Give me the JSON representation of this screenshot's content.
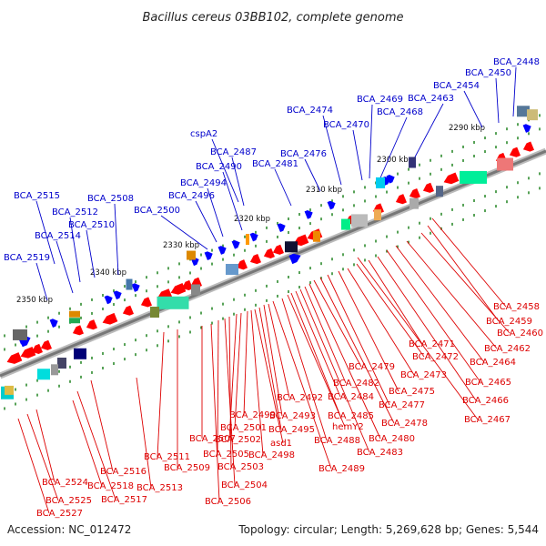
{
  "title": "Bacillus cereus 03BB102, complete genome",
  "footer": {
    "accession": "Accession: NC_012472",
    "topology": "Topology: circular; Length: 5,269,628 bp; Genes: 5,544"
  },
  "colors": {
    "forward": "#0000ff",
    "reverse": "#ff0000",
    "backbone": "#888888",
    "tick": "#2e8b2e"
  },
  "kbp_labels": [
    "2290 kbp",
    "2300 kbp",
    "2310 kbp",
    "2320 kbp",
    "2330 kbp",
    "2340 kbp",
    "2350 kbp"
  ],
  "top_labels": [
    "BCA_2448",
    "BCA_2450",
    "BCA_2454",
    "BCA_2463",
    "BCA_2468",
    "BCA_2469",
    "BCA_2470",
    "BCA_2474",
    "BCA_2476",
    "BCA_2481",
    "cspA2",
    "BCA_2487",
    "BCA_2490",
    "BCA_2494",
    "BCA_2496",
    "BCA_2500",
    "BCA_2508",
    "BCA_2515",
    "BCA_2512",
    "BCA_2510",
    "BCA_2514",
    "BCA_2519"
  ],
  "bottom_labels": [
    "BCA_2458",
    "BCA_2459",
    "BCA_2460",
    "BCA_2462",
    "BCA_2464",
    "BCA_2465",
    "BCA_2466",
    "BCA_2467",
    "BCA_2471",
    "BCA_2472",
    "BCA_2473",
    "BCA_2475",
    "BCA_2477",
    "BCA_2478",
    "BCA_2479",
    "BCA_2480",
    "BCA_2482",
    "BCA_2483",
    "BCA_2484",
    "BCA_2485",
    "hemY2",
    "BCA_2488",
    "BCA_2489",
    "BCA_2492",
    "BCA_2493",
    "BCA_2495",
    "asd1",
    "BCA_2498",
    "BCA_2499",
    "BCA_2501",
    "BCA_2502",
    "BCA_2503",
    "BCA_2504",
    "BCA_2505",
    "BCA_2506",
    "BCA_2507",
    "BCA_2509",
    "BCA_2511",
    "BCA_2513",
    "BCA_2516",
    "BCA_2517",
    "BCA_2518",
    "BCA_2524",
    "BCA_2525",
    "BCA_2527"
  ]
}
